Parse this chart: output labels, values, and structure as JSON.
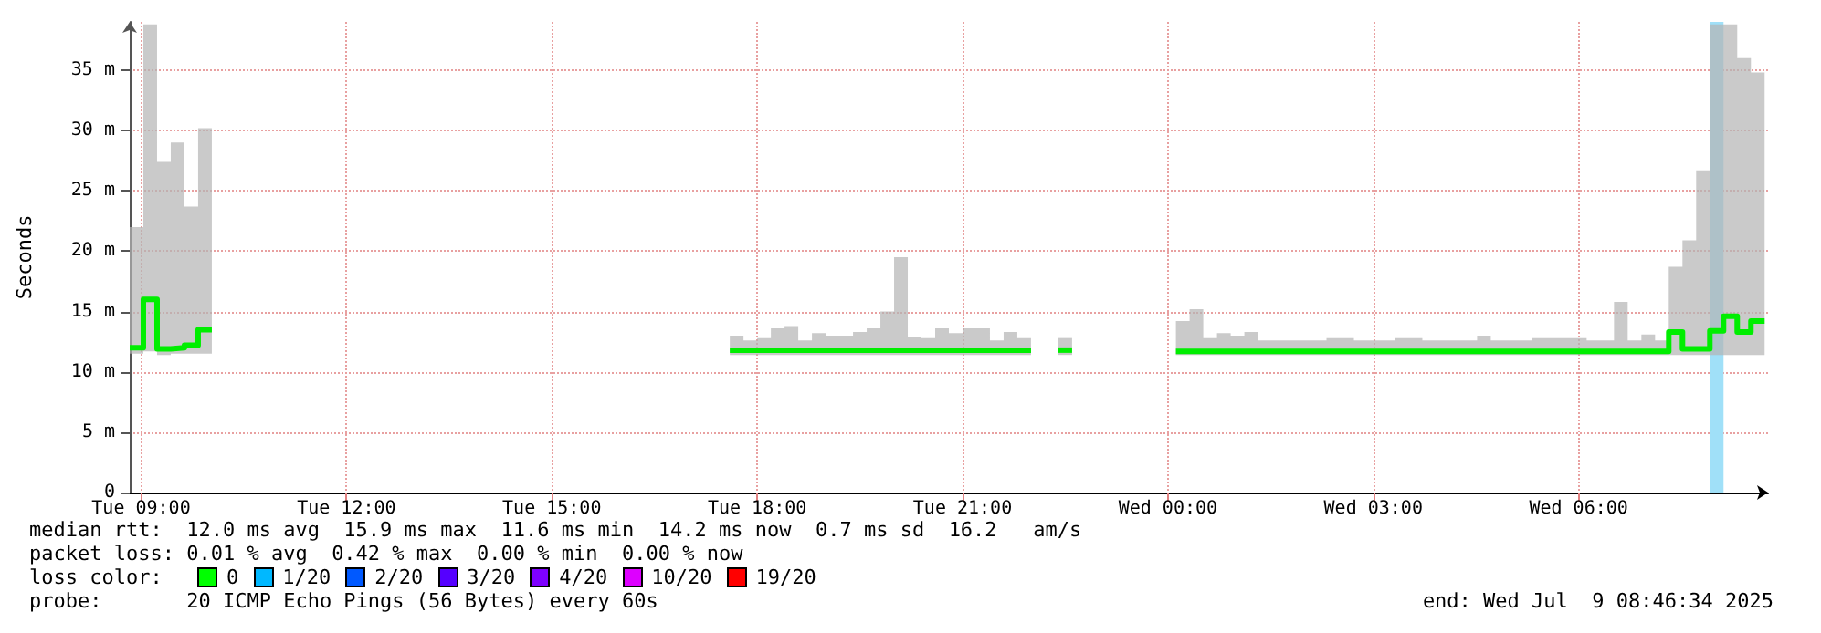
{
  "chart_data": {
    "type": "step",
    "ylabel": "Seconds",
    "xlim": [
      "2025-07-08T08:50",
      "2025-07-09T08:46"
    ],
    "xticks": [
      {
        "value": "2025-07-08T09:00",
        "label": "Tue 09:00"
      },
      {
        "value": "2025-07-08T12:00",
        "label": "Tue 12:00"
      },
      {
        "value": "2025-07-08T15:00",
        "label": "Tue 15:00"
      },
      {
        "value": "2025-07-08T18:00",
        "label": "Tue 18:00"
      },
      {
        "value": "2025-07-08T21:00",
        "label": "Tue 21:00"
      },
      {
        "value": "2025-07-09T00:00",
        "label": "Wed 00:00"
      },
      {
        "value": "2025-07-09T03:00",
        "label": "Wed 03:00"
      },
      {
        "value": "2025-07-09T06:00",
        "label": "Wed 06:00"
      }
    ],
    "ylim": [
      0,
      39
    ],
    "yticks": [
      0,
      {
        "value": 5,
        "label": "5 m"
      },
      {
        "value": 10,
        "label": "10 m"
      },
      {
        "value": 15,
        "label": "15 m"
      },
      {
        "value": 20,
        "label": "20 m"
      },
      {
        "value": 25,
        "label": "25 m"
      },
      {
        "value": 30,
        "label": "30 m"
      },
      {
        "value": 35,
        "label": "35 m"
      }
    ],
    "grid": true,
    "marker": "none",
    "line_style": "solid",
    "series": [
      {
        "color": "#00ee00",
        "x": [
          "2025-07-08T08:50",
          "2025-07-08T09:02",
          "2025-07-08T09:14",
          "2025-07-08T09:26",
          "2025-07-08T09:38",
          "2025-07-08T09:50",
          "2025-07-08T10:02"
        ],
        "values": [
          12.0,
          16.0,
          11.9,
          12.0,
          12.2,
          13.5,
          13.5
        ],
        "lower": [
          11.5,
          11.7,
          11.4,
          11.5,
          11.5,
          11.5,
          11.5
        ],
        "upper": [
          22.0,
          38.8,
          27.4,
          29.0,
          23.7,
          30.2,
          30.2
        ]
      },
      {
        "color": "#00ee00",
        "x": [
          "2025-07-08T17:36",
          "2025-07-08T17:48",
          "2025-07-08T18:00",
          "2025-07-08T18:12",
          "2025-07-08T18:24",
          "2025-07-08T18:36",
          "2025-07-08T18:48",
          "2025-07-08T19:00",
          "2025-07-08T19:12",
          "2025-07-08T19:24",
          "2025-07-08T19:36",
          "2025-07-08T19:48",
          "2025-07-08T20:00",
          "2025-07-08T20:12",
          "2025-07-08T20:24",
          "2025-07-08T20:36",
          "2025-07-08T20:48",
          "2025-07-08T21:00",
          "2025-07-08T21:12",
          "2025-07-08T21:24",
          "2025-07-08T21:36",
          "2025-07-08T21:48",
          "2025-07-08T22:00"
        ],
        "values": [
          11.8,
          11.8,
          11.8,
          11.8,
          11.8,
          11.8,
          11.8,
          11.8,
          11.8,
          11.8,
          11.8,
          11.8,
          11.8,
          11.8,
          11.8,
          11.8,
          11.8,
          11.8,
          11.8,
          11.8,
          11.8,
          11.8,
          11.8
        ],
        "lower": [
          11.4,
          11.4,
          11.4,
          11.4,
          11.4,
          11.4,
          11.4,
          11.4,
          11.4,
          11.4,
          11.4,
          11.4,
          11.4,
          11.4,
          11.4,
          11.4,
          11.4,
          11.4,
          11.4,
          11.4,
          11.4,
          11.4,
          11.4
        ],
        "upper": [
          13.0,
          12.6,
          12.8,
          13.6,
          13.8,
          12.6,
          13.2,
          13.0,
          13.0,
          13.3,
          13.6,
          15.0,
          19.5,
          12.9,
          12.8,
          13.6,
          13.2,
          13.6,
          13.6,
          12.6,
          13.3,
          12.8,
          12.8
        ]
      },
      {
        "color": "#00ee00",
        "x": [
          "2025-07-08T22:24",
          "2025-07-08T22:36"
        ],
        "values": [
          11.8,
          11.8
        ],
        "lower": [
          11.4,
          11.4
        ],
        "upper": [
          12.8,
          12.8
        ]
      },
      {
        "color": "#00ee00",
        "x": [
          "2025-07-09T00:07",
          "2025-07-09T00:19",
          "2025-07-09T00:31",
          "2025-07-09T00:43",
          "2025-07-09T00:55",
          "2025-07-09T01:07",
          "2025-07-09T01:19",
          "2025-07-09T01:31",
          "2025-07-09T01:43",
          "2025-07-09T01:55",
          "2025-07-09T02:07",
          "2025-07-09T02:19",
          "2025-07-09T02:31",
          "2025-07-09T02:43",
          "2025-07-09T02:55",
          "2025-07-09T03:07",
          "2025-07-09T03:19",
          "2025-07-09T03:31",
          "2025-07-09T03:43",
          "2025-07-09T03:55",
          "2025-07-09T04:07",
          "2025-07-09T04:19",
          "2025-07-09T04:31",
          "2025-07-09T04:43",
          "2025-07-09T04:55",
          "2025-07-09T05:07",
          "2025-07-09T05:19",
          "2025-07-09T05:31",
          "2025-07-09T05:43",
          "2025-07-09T05:55",
          "2025-07-09T06:07",
          "2025-07-09T06:19",
          "2025-07-09T06:31",
          "2025-07-09T06:43",
          "2025-07-09T06:55",
          "2025-07-09T07:07",
          "2025-07-09T07:19",
          "2025-07-09T07:31",
          "2025-07-09T07:43",
          "2025-07-09T07:55",
          "2025-07-09T08:07",
          "2025-07-09T08:19",
          "2025-07-09T08:31",
          "2025-07-09T08:43"
        ],
        "values": [
          11.7,
          11.7,
          11.7,
          11.7,
          11.7,
          11.7,
          11.7,
          11.7,
          11.7,
          11.7,
          11.7,
          11.7,
          11.7,
          11.7,
          11.7,
          11.7,
          11.7,
          11.7,
          11.7,
          11.7,
          11.7,
          11.7,
          11.7,
          11.7,
          11.7,
          11.7,
          11.7,
          11.7,
          11.7,
          11.7,
          11.7,
          11.7,
          11.7,
          11.7,
          11.7,
          11.7,
          13.3,
          11.9,
          11.9,
          13.4,
          14.6,
          13.3,
          14.2,
          14.2
        ],
        "lower": [
          11.4,
          11.4,
          11.4,
          11.4,
          11.4,
          11.4,
          11.4,
          11.4,
          11.4,
          11.4,
          11.4,
          11.4,
          11.4,
          11.4,
          11.4,
          11.4,
          11.4,
          11.4,
          11.4,
          11.4,
          11.4,
          11.4,
          11.4,
          11.4,
          11.4,
          11.4,
          11.4,
          11.4,
          11.4,
          11.4,
          11.4,
          11.4,
          11.4,
          11.4,
          11.4,
          11.4,
          11.4,
          11.4,
          11.4,
          11.4,
          11.4,
          11.4,
          11.4,
          11.4
        ],
        "upper": [
          14.2,
          15.2,
          12.8,
          13.2,
          13.0,
          13.3,
          12.6,
          12.6,
          12.6,
          12.6,
          12.6,
          12.8,
          12.8,
          12.6,
          12.6,
          12.6,
          12.8,
          12.8,
          12.6,
          12.6,
          12.6,
          12.6,
          13.0,
          12.6,
          12.6,
          12.6,
          12.8,
          12.8,
          12.8,
          12.8,
          12.6,
          12.6,
          15.8,
          12.6,
          13.1,
          12.6,
          18.7,
          20.9,
          26.7,
          38.8,
          38.8,
          36.0,
          34.8,
          34.8
        ]
      }
    ],
    "bands": [
      {
        "axis": "x",
        "from": "2025-07-09T07:55",
        "to": "2025-07-09T08:07",
        "color": "#a0e0f8"
      }
    ],
    "annotations": [
      "median rtt:  12.0 ms avg  15.9 ms max  11.6 ms min  14.2 ms now  0.7 ms sd  16.2   am/s",
      "packet loss: 0.01 % avg  0.42 % max  0.00 % min  0.00 % now",
      "loss color:",
      "0",
      "1/20",
      "2/20",
      "3/20",
      "4/20",
      "10/20",
      "19/20",
      "probe:       20 ICMP Echo Pings (56 Bytes) every 60s",
      "end: Wed Jul  9 08:46:34 2025"
    ]
  }
}
